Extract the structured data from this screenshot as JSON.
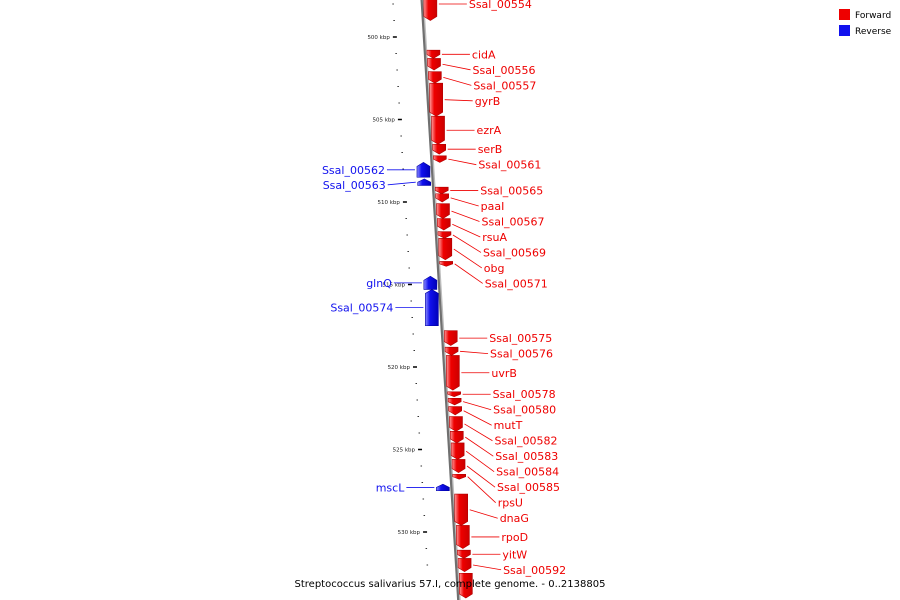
{
  "caption": "Streptococcus salivarius 57.I, complete genome. - 0..2138805",
  "legend": {
    "forward": {
      "label": "Forward",
      "color": "#ee0000"
    },
    "reverse": {
      "label": "Reverse",
      "color": "#1111ee"
    }
  },
  "ticks": [
    {
      "kbp": 500,
      "label": "500 kbp"
    },
    {
      "kbp": 505,
      "label": "505 kbp"
    },
    {
      "kbp": 510,
      "label": "510 kbp"
    },
    {
      "kbp": 515,
      "label": "515 kbp"
    },
    {
      "kbp": 520,
      "label": "520 kbp"
    },
    {
      "kbp": 525,
      "label": "525 kbp"
    },
    {
      "kbp": 530,
      "label": "530 kbp"
    }
  ],
  "genes": [
    {
      "name": "Ssal_00554",
      "strand": "forward",
      "start": 497.0,
      "end": 499.0
    },
    {
      "name": "cidA",
      "strand": "forward",
      "start": 500.8,
      "end": 501.3
    },
    {
      "name": "Ssal_00556",
      "strand": "forward",
      "start": 501.3,
      "end": 502.0
    },
    {
      "name": "Ssal_00557",
      "strand": "forward",
      "start": 502.1,
      "end": 502.8
    },
    {
      "name": "gyrB",
      "strand": "forward",
      "start": 502.8,
      "end": 504.8
    },
    {
      "name": "ezrA",
      "strand": "forward",
      "start": 504.8,
      "end": 506.5
    },
    {
      "name": "serB",
      "strand": "forward",
      "start": 506.5,
      "end": 507.1
    },
    {
      "name": "Ssal_00561",
      "strand": "forward",
      "start": 507.2,
      "end": 507.6
    },
    {
      "name": "Ssal_00562",
      "strand": "reverse",
      "start": 507.6,
      "end": 508.5
    },
    {
      "name": "Ssal_00563",
      "strand": "reverse",
      "start": 508.6,
      "end": 509.0
    },
    {
      "name": "Ssal_00565",
      "strand": "forward",
      "start": 509.1,
      "end": 509.5
    },
    {
      "name": "paaI",
      "strand": "forward",
      "start": 509.5,
      "end": 510.0
    },
    {
      "name": "Ssal_00567",
      "strand": "forward",
      "start": 510.1,
      "end": 511.0
    },
    {
      "name": "rsuA",
      "strand": "forward",
      "start": 511.0,
      "end": 511.7
    },
    {
      "name": "Ssal_00569",
      "strand": "forward",
      "start": 511.8,
      "end": 512.2
    },
    {
      "name": "obg",
      "strand": "forward",
      "start": 512.2,
      "end": 513.5
    },
    {
      "name": "Ssal_00571",
      "strand": "forward",
      "start": 513.6,
      "end": 513.9
    },
    {
      "name": "glnQ",
      "strand": "reverse",
      "start": 514.5,
      "end": 515.3
    },
    {
      "name": "Ssal_00574",
      "strand": "reverse",
      "start": 515.3,
      "end": 517.5
    },
    {
      "name": "Ssal_00575",
      "strand": "forward",
      "start": 517.8,
      "end": 518.7
    },
    {
      "name": "Ssal_00576",
      "strand": "forward",
      "start": 518.8,
      "end": 519.3
    },
    {
      "name": "uvrB",
      "strand": "forward",
      "start": 519.3,
      "end": 521.4
    },
    {
      "name": "Ssal_00578",
      "strand": "forward",
      "start": 521.5,
      "end": 521.8
    },
    {
      "name": "Ssal_00580",
      "strand": "forward",
      "start": 521.9,
      "end": 522.3
    },
    {
      "name": "mutT",
      "strand": "forward",
      "start": 522.4,
      "end": 522.9
    },
    {
      "name": "Ssal_00582",
      "strand": "forward",
      "start": 523.0,
      "end": 523.9
    },
    {
      "name": "Ssal_00583",
      "strand": "forward",
      "start": 523.9,
      "end": 524.6
    },
    {
      "name": "Ssal_00584",
      "strand": "forward",
      "start": 524.6,
      "end": 525.6
    },
    {
      "name": "Ssal_00585",
      "strand": "forward",
      "start": 525.6,
      "end": 526.4
    },
    {
      "name": "rpsU",
      "strand": "forward",
      "start": 526.5,
      "end": 526.8
    },
    {
      "name": "mscL",
      "strand": "reverse",
      "start": 527.1,
      "end": 527.5
    },
    {
      "name": "dnaG",
      "strand": "forward",
      "start": 527.7,
      "end": 529.6
    },
    {
      "name": "rpoD",
      "strand": "forward",
      "start": 529.6,
      "end": 531.0
    },
    {
      "name": "yitW",
      "strand": "forward",
      "start": 531.1,
      "end": 531.6
    },
    {
      "name": "Ssal_00592",
      "strand": "forward",
      "start": 531.6,
      "end": 532.4
    },
    {
      "name": "",
      "strand": "forward",
      "start": 532.5,
      "end": 534.0
    }
  ]
}
